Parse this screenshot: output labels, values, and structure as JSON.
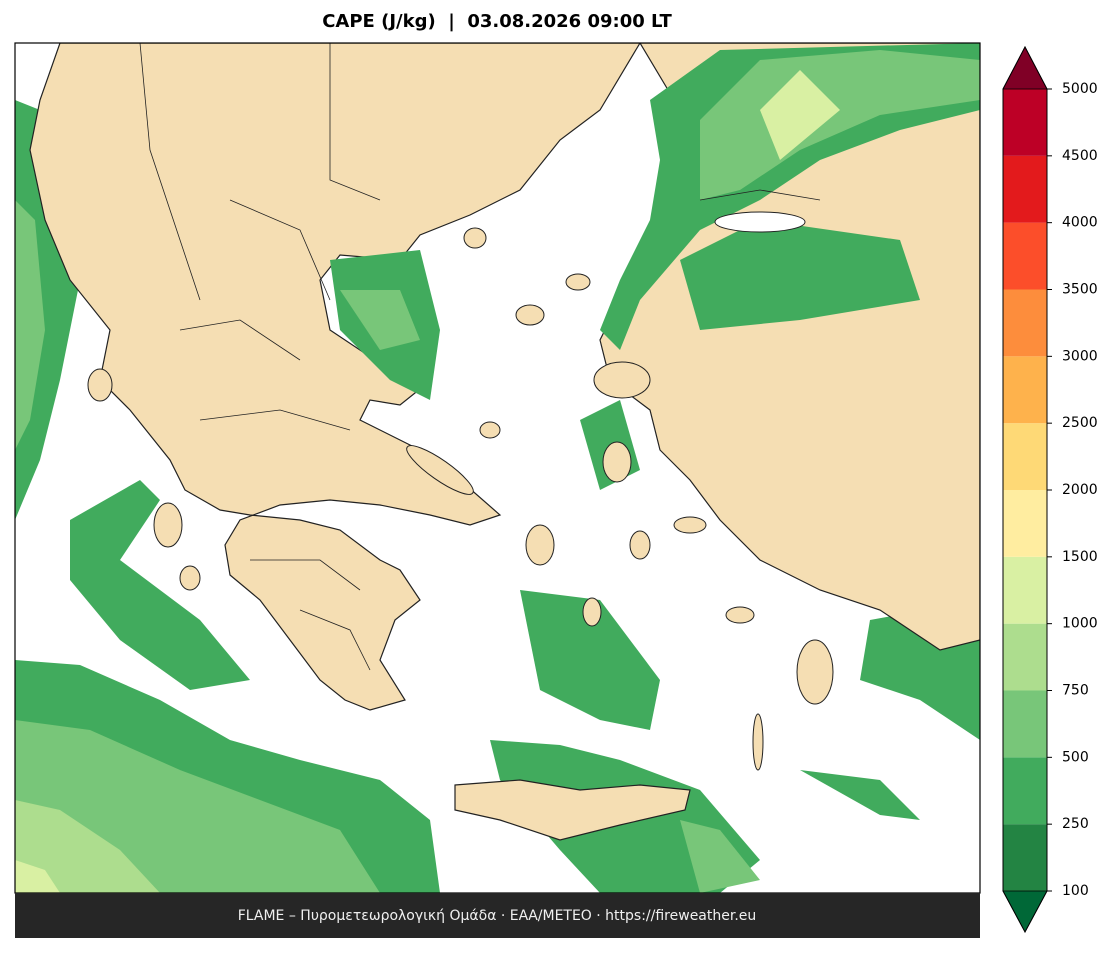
{
  "title": "CAPE (J/kg)  |  03.08.2026 09:00 LT",
  "colorbar": {
    "levels": [
      100,
      250,
      500,
      750,
      1000,
      1500,
      2000,
      2500,
      3000,
      3500,
      4000,
      4500,
      5000
    ],
    "colors": [
      "#238443",
      "#41ab5d",
      "#78c679",
      "#addd8e",
      "#d9f0a3",
      "#ffeda0",
      "#fed976",
      "#feb24c",
      "#fd8d3c",
      "#fc4e2a",
      "#e31a1c",
      "#bd0026"
    ],
    "under_color": "#006837",
    "over_color": "#800026"
  },
  "footer": "FLAME – Πυρομετεωρολογική Ομάδα · ΕΑΑ/ΜΕΤΕΟ · https://fireweather.eu"
}
